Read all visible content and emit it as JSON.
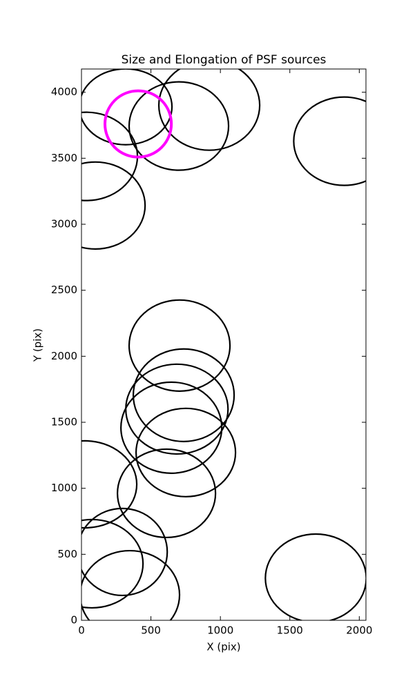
{
  "chart_data": {
    "type": "ellipse",
    "title": "Size and Elongation of PSF sources",
    "xlabel": "X (pix)",
    "ylabel": "Y (pix)",
    "xlim": [
      0,
      2048
    ],
    "ylim": [
      0,
      4176
    ],
    "xticks": [
      0,
      500,
      1000,
      1500,
      2000
    ],
    "yticks": [
      0,
      500,
      1000,
      1500,
      2000,
      2500,
      3000,
      3500,
      4000
    ],
    "series": [
      {
        "color": "#000000",
        "x": [
          706,
          736,
          687,
          647,
          751,
          612,
          25,
          294,
          75,
          348,
          1687,
          920,
          701,
          1891,
          318,
          35,
          100
        ],
        "y": [
          2081,
          1705,
          1600,
          1459,
          1271,
          962,
          1030,
          518,
          429,
          193,
          319,
          3901,
          3744,
          3629,
          3890,
          3514,
          3142
        ],
        "width": [
          726,
          726,
          736,
          726,
          716,
          706,
          746,
          647,
          736,
          716,
          726,
          726,
          716,
          726,
          667,
          736,
          716
        ],
        "height": [
          690,
          701,
          680,
          690,
          669,
          669,
          659,
          659,
          669,
          669,
          669,
          680,
          669,
          669,
          575,
          669,
          659
        ]
      },
      {
        "color": "#ff00ff",
        "x": [
          408
        ],
        "y": [
          3760
        ],
        "width": [
          478
        ],
        "height": [
          502
        ]
      }
    ]
  }
}
